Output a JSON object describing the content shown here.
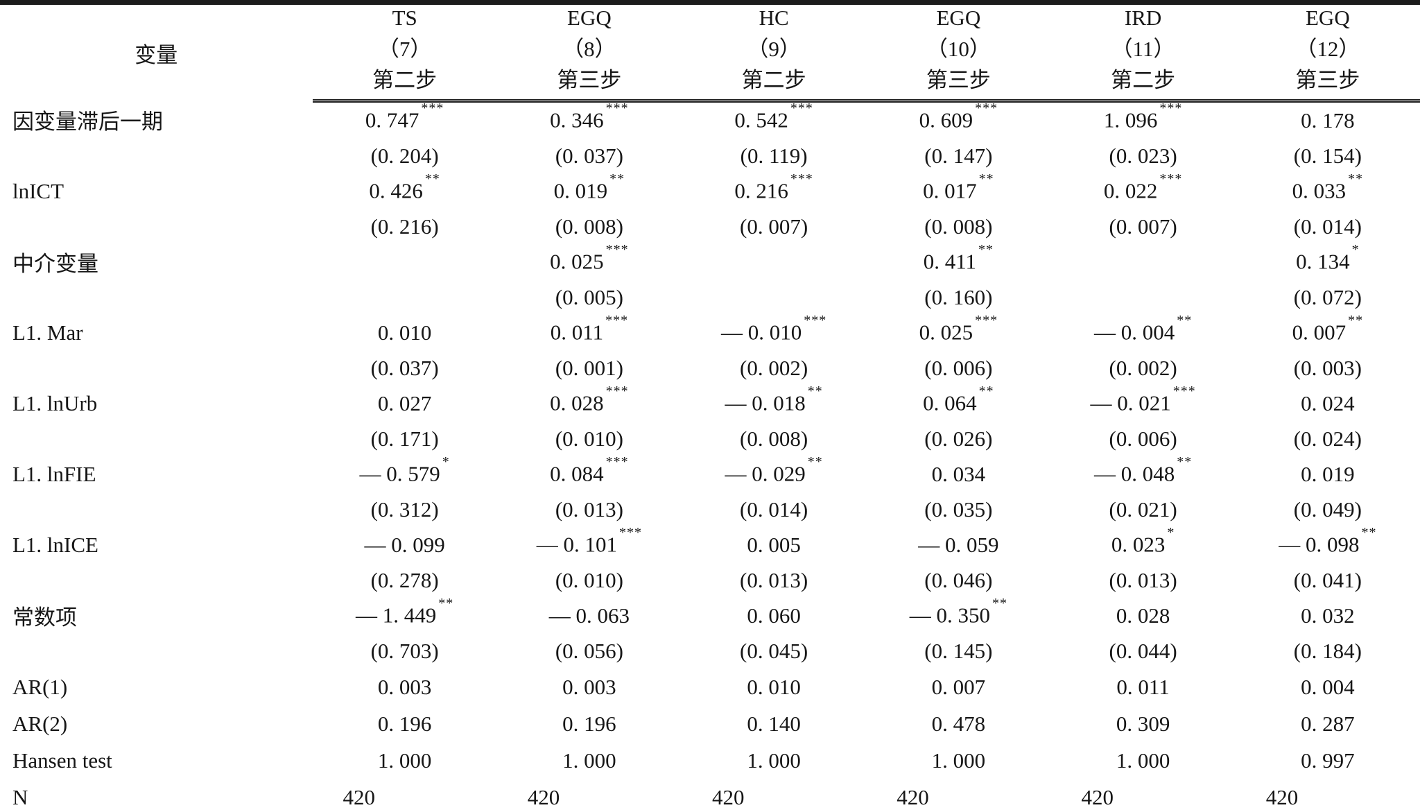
{
  "table": {
    "header": {
      "variable_label": "变量",
      "columns": [
        {
          "model": "TS",
          "number": "（7）",
          "step": "第二步"
        },
        {
          "model": "EGQ",
          "number": "（8）",
          "step": "第三步"
        },
        {
          "model": "HC",
          "number": "（9）",
          "step": "第二步"
        },
        {
          "model": "EGQ",
          "number": "（10）",
          "step": "第三步"
        },
        {
          "model": "IRD",
          "number": "（11）",
          "step": "第二步"
        },
        {
          "model": "EGQ",
          "number": "（12）",
          "step": "第三步"
        }
      ]
    },
    "rows": [
      {
        "label": "因变量滞后一期",
        "coef": [
          [
            "0. 747",
            "***"
          ],
          [
            "0. 346",
            "***"
          ],
          [
            "0. 542",
            "***"
          ],
          [
            "0. 609",
            "***"
          ],
          [
            "1. 096",
            "***"
          ],
          [
            "0. 178",
            ""
          ]
        ],
        "se": [
          "(0. 204)",
          "(0. 037)",
          "(0. 119)",
          "(0. 147)",
          "(0. 023)",
          "(0. 154)"
        ]
      },
      {
        "label": "lnICT",
        "coef": [
          [
            "0. 426",
            "**"
          ],
          [
            "0. 019",
            "**"
          ],
          [
            "0. 216",
            "***"
          ],
          [
            "0. 017",
            "**"
          ],
          [
            "0. 022",
            "***"
          ],
          [
            "0. 033",
            "**"
          ]
        ],
        "se": [
          "(0. 216)",
          "(0. 008)",
          "(0. 007)",
          "(0. 008)",
          "(0. 007)",
          "(0. 014)"
        ]
      },
      {
        "label": "中介变量",
        "coef": [
          [
            "",
            ""
          ],
          [
            "0. 025",
            "***"
          ],
          [
            "",
            ""
          ],
          [
            "0. 411",
            "**"
          ],
          [
            "",
            ""
          ],
          [
            "0. 134",
            "*"
          ]
        ],
        "se": [
          "",
          "(0. 005)",
          "",
          "(0. 160)",
          "",
          "(0. 072)"
        ]
      },
      {
        "label": "L1. Mar",
        "coef": [
          [
            "0. 010",
            ""
          ],
          [
            "0. 011",
            "***"
          ],
          [
            "— 0. 010",
            "***"
          ],
          [
            "0. 025",
            "***"
          ],
          [
            "— 0. 004",
            "**"
          ],
          [
            "0. 007",
            "**"
          ]
        ],
        "se": [
          "(0. 037)",
          "(0. 001)",
          "(0. 002)",
          "(0. 006)",
          "(0. 002)",
          "(0. 003)"
        ]
      },
      {
        "label": "L1. lnUrb",
        "coef": [
          [
            "0. 027",
            ""
          ],
          [
            "0. 028",
            "***"
          ],
          [
            "— 0. 018",
            "**"
          ],
          [
            "0. 064",
            "**"
          ],
          [
            "— 0. 021",
            "***"
          ],
          [
            "0. 024",
            ""
          ]
        ],
        "se": [
          "(0. 171)",
          "(0. 010)",
          "(0. 008)",
          "(0. 026)",
          "(0. 006)",
          "(0. 024)"
        ]
      },
      {
        "label": "L1. lnFIE",
        "coef": [
          [
            "— 0. 579",
            "*"
          ],
          [
            "0. 084",
            "***"
          ],
          [
            "— 0. 029",
            "**"
          ],
          [
            "0. 034",
            ""
          ],
          [
            "— 0. 048",
            "**"
          ],
          [
            "0. 019",
            ""
          ]
        ],
        "se": [
          "(0. 312)",
          "(0. 013)",
          "(0. 014)",
          "(0. 035)",
          "(0. 021)",
          "(0. 049)"
        ]
      },
      {
        "label": "L1. lnICE",
        "coef": [
          [
            "— 0. 099",
            ""
          ],
          [
            "— 0. 101",
            "***"
          ],
          [
            "0. 005",
            ""
          ],
          [
            "— 0. 059",
            ""
          ],
          [
            "0. 023",
            "*"
          ],
          [
            "— 0. 098",
            "**"
          ]
        ],
        "se": [
          "(0. 278)",
          "(0. 010)",
          "(0. 013)",
          "(0. 046)",
          "(0. 013)",
          "(0. 041)"
        ]
      },
      {
        "label": "常数项",
        "coef": [
          [
            "— 1. 449",
            "**"
          ],
          [
            "— 0. 063",
            ""
          ],
          [
            "0. 060",
            ""
          ],
          [
            "— 0. 350",
            "**"
          ],
          [
            "0. 028",
            ""
          ],
          [
            "0. 032",
            ""
          ]
        ],
        "se": [
          "(0. 703)",
          "(0. 056)",
          "(0. 045)",
          "(0. 145)",
          "(0. 044)",
          "(0. 184)"
        ]
      }
    ],
    "stat_rows": [
      {
        "label": "AR(1)",
        "values": [
          "0. 003",
          "0. 003",
          "0. 010",
          "0. 007",
          "0. 011",
          "0. 004"
        ]
      },
      {
        "label": "AR(2)",
        "values": [
          "0. 196",
          "0. 196",
          "0. 140",
          "0. 478",
          "0. 309",
          "0. 287"
        ]
      },
      {
        "label": "Hansen test",
        "values": [
          "1. 000",
          "1. 000",
          "1. 000",
          "1. 000",
          "1. 000",
          "0. 997"
        ]
      },
      {
        "label": "N",
        "values": [
          "420",
          "420",
          "420",
          "420",
          "420",
          "420"
        ]
      }
    ]
  }
}
